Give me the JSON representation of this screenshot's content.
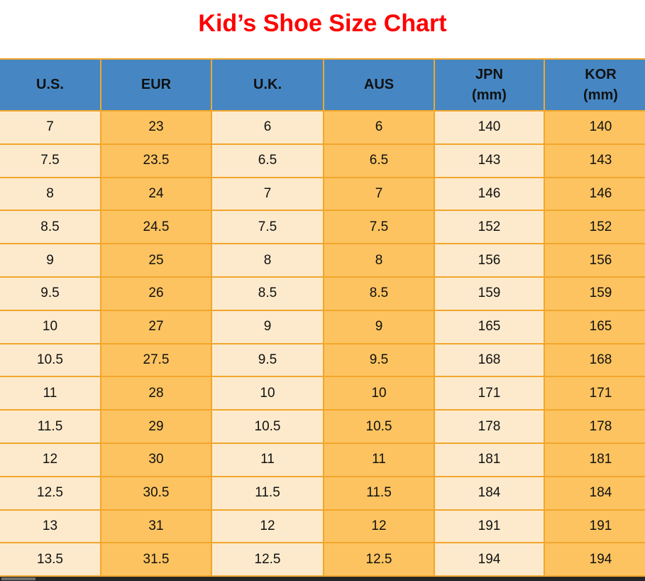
{
  "title": "Kid’s Shoe Size Chart",
  "colors": {
    "title-red": "#FE0000",
    "header-blue": "#4687C3",
    "cell-cream": "#FDEACC",
    "cell-orange": "#FCC360",
    "grid-orange": "#F2A62C",
    "text-black": "#111111",
    "scrollbar-track": "#262626",
    "scrollbar-thumb": "#6E6E6E"
  },
  "chart_data": {
    "type": "table",
    "title": "Kid’s Shoe Size Chart",
    "columns": [
      {
        "key": "us",
        "label": "U.S.",
        "sub": ""
      },
      {
        "key": "eur",
        "label": "EUR",
        "sub": ""
      },
      {
        "key": "uk",
        "label": "U.K.",
        "sub": ""
      },
      {
        "key": "aus",
        "label": "AUS",
        "sub": ""
      },
      {
        "key": "jpn",
        "label": "JPN",
        "sub": "(mm)"
      },
      {
        "key": "kor",
        "label": "KOR",
        "sub": "(mm)"
      }
    ],
    "rows": [
      [
        "7",
        "23",
        "6",
        "6",
        "140",
        "140"
      ],
      [
        "7.5",
        "23.5",
        "6.5",
        "6.5",
        "143",
        "143"
      ],
      [
        "8",
        "24",
        "7",
        "7",
        "146",
        "146"
      ],
      [
        "8.5",
        "24.5",
        "7.5",
        "7.5",
        "152",
        "152"
      ],
      [
        "9",
        "25",
        "8",
        "8",
        "156",
        "156"
      ],
      [
        "9.5",
        "26",
        "8.5",
        "8.5",
        "159",
        "159"
      ],
      [
        "10",
        "27",
        "9",
        "9",
        "165",
        "165"
      ],
      [
        "10.5",
        "27.5",
        "9.5",
        "9.5",
        "168",
        "168"
      ],
      [
        "11",
        "28",
        "10",
        "10",
        "171",
        "171"
      ],
      [
        "11.5",
        "29",
        "10.5",
        "10.5",
        "178",
        "178"
      ],
      [
        "12",
        "30",
        "11",
        "11",
        "181",
        "181"
      ],
      [
        "12.5",
        "30.5",
        "11.5",
        "11.5",
        "184",
        "184"
      ],
      [
        "13",
        "31",
        "12",
        "12",
        "191",
        "191"
      ],
      [
        "13.5",
        "31.5",
        "12.5",
        "12.5",
        "194",
        "194"
      ]
    ]
  }
}
